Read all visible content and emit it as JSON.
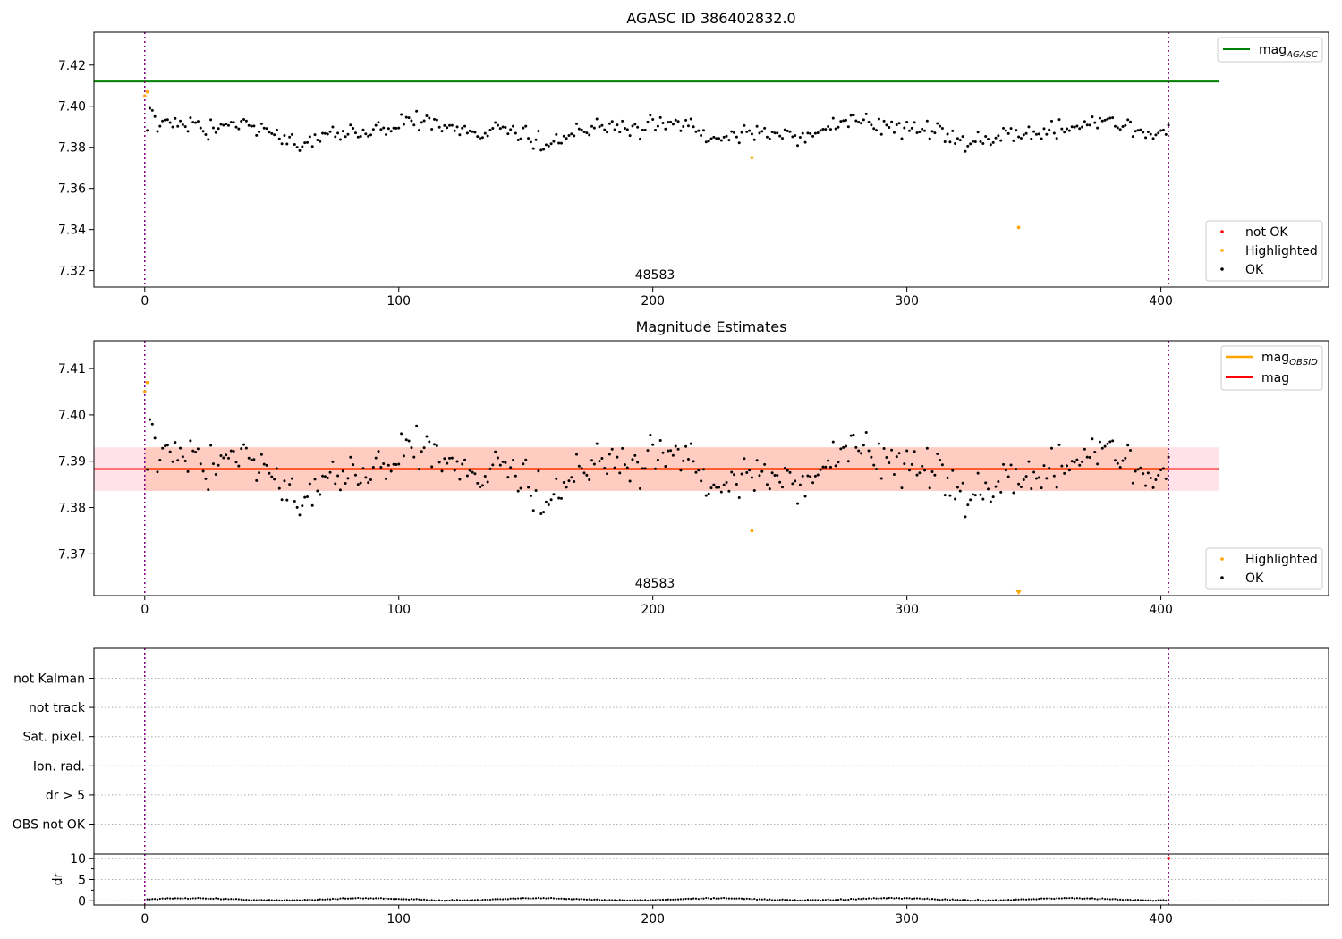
{
  "chart_data": [
    {
      "type": "scatter",
      "title": "AGASC ID 386402832.0",
      "xlim": [
        -20,
        466
      ],
      "ylim": [
        7.312,
        7.436
      ],
      "xticks": [
        0,
        100,
        200,
        300,
        400
      ],
      "yticks": [
        7.32,
        7.34,
        7.36,
        7.38,
        7.4,
        7.42
      ],
      "ytick_labels": [
        "7.32",
        "7.34",
        "7.36",
        "7.38",
        "7.40",
        "7.42"
      ],
      "annotation": "48583",
      "obs_boundaries": [
        0,
        403
      ],
      "lines": [
        {
          "name": "mag",
          "subscript": "AGASC",
          "y": 7.412,
          "x_range": [
            -20,
            423
          ],
          "color": "#008000"
        }
      ],
      "legend_markers": [
        {
          "name": "not OK",
          "color": "#ff0000"
        },
        {
          "name": "Highlighted",
          "color": "#ffa500"
        },
        {
          "name": "OK",
          "color": "#000000"
        }
      ],
      "highlighted_points": [
        [
          0,
          7.405
        ],
        [
          1,
          7.407
        ],
        [
          239,
          7.375
        ],
        [
          344,
          7.341
        ]
      ]
    },
    {
      "type": "scatter",
      "title": "Magnitude Estimates",
      "xlim": [
        -20,
        466
      ],
      "ylim": [
        7.361,
        7.416
      ],
      "xticks": [
        0,
        100,
        200,
        300,
        400
      ],
      "yticks": [
        7.37,
        7.38,
        7.39,
        7.4,
        7.41
      ],
      "ytick_labels": [
        "7.37",
        "7.38",
        "7.39",
        "7.40",
        "7.41"
      ],
      "annotation": "48583",
      "obs_boundaries": [
        0,
        403
      ],
      "mag_line": {
        "name": "mag",
        "y": 7.3883,
        "x_range": [
          -20,
          423
        ],
        "color": "#ff0000"
      },
      "mag_band": {
        "y_low": 7.3836,
        "y_high": 7.393,
        "x_range": [
          -20,
          423
        ]
      },
      "obsid_mag": {
        "name": "mag",
        "subscript": "OBSID",
        "y": 7.3883,
        "x_range": [
          0,
          403
        ],
        "color": "#ffa500"
      },
      "obsid_band": {
        "y_low": 7.3836,
        "y_high": 7.393,
        "x_range": [
          0,
          403
        ]
      },
      "legend_lines": [
        {
          "name": "mag",
          "subscript": "OBSID",
          "color": "#ffa500"
        },
        {
          "name": "mag",
          "color": "#ff0000"
        }
      ],
      "legend_markers": [
        {
          "name": "Highlighted",
          "color": "#ffa500"
        },
        {
          "name": "OK",
          "color": "#000000"
        }
      ],
      "highlighted_points": [
        [
          0,
          7.405
        ],
        [
          1,
          7.407
        ],
        [
          239,
          7.375
        ]
      ],
      "off_scale_marker": {
        "x": 344,
        "color": "#ffa500"
      }
    },
    {
      "type": "scatter",
      "xlim": [
        -20,
        466
      ],
      "obs_boundaries": [
        0,
        403
      ],
      "flag_categories": [
        "not Kalman",
        "not track",
        "Sat. pixel.",
        "Ion. rad.",
        "dr > 5",
        "OBS not OK"
      ],
      "dr_panel": {
        "ylabel": "dr",
        "ylim": [
          -1,
          11
        ],
        "yticks": [
          0,
          5,
          10
        ],
        "ytick_labels": [
          "0",
          "5",
          "10"
        ],
        "outlier": [
          403,
          10
        ],
        "xticks": [
          0,
          100,
          200,
          300,
          400
        ]
      }
    }
  ]
}
